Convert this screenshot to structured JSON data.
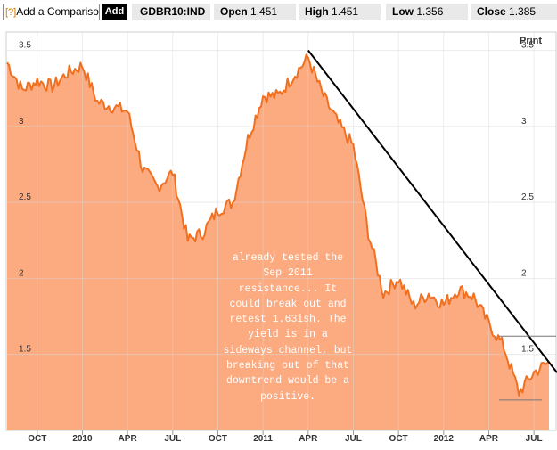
{
  "toolbar": {
    "help_mark": "[?]",
    "comparison_label": "Add a Comparison",
    "add_label": "Add",
    "ticker": "GDBR10:IND",
    "open_label": "Open",
    "open_value": "1.451",
    "high_label": "High",
    "high_value": "1.451",
    "low_label": "Low",
    "low_value": "1.356",
    "close_label": "Close",
    "close_value": "1.385",
    "print_label": "Print"
  },
  "colors": {
    "line": "#f07020",
    "fill": "#fcaa80",
    "trend": "#000000"
  },
  "chart_data": {
    "type": "area",
    "x_ticks": [
      "OCT",
      "2010",
      "APR",
      "JUL",
      "OCT",
      "2011",
      "APR",
      "JUL",
      "OCT",
      "2012",
      "APR",
      "JUL"
    ],
    "y_ticks": [
      "3.5",
      "3",
      "2.5",
      "2",
      "1.5"
    ],
    "ylim": [
      1.0,
      3.62
    ],
    "grid": true,
    "x": [
      "2009-08",
      "2009-09",
      "2009-10",
      "2009-11",
      "2009-12",
      "2010-01",
      "2010-02",
      "2010-03",
      "2010-04",
      "2010-05",
      "2010-06",
      "2010-07",
      "2010-08",
      "2010-09",
      "2010-10",
      "2010-11",
      "2010-12",
      "2011-01",
      "2011-02",
      "2011-03",
      "2011-04",
      "2011-05",
      "2011-06",
      "2011-07",
      "2011-08",
      "2011-09",
      "2011-10",
      "2011-11",
      "2011-12",
      "2012-01",
      "2012-02",
      "2012-03",
      "2012-04",
      "2012-05",
      "2012-06",
      "2012-07",
      "2012-08"
    ],
    "values": [
      3.42,
      3.24,
      3.3,
      3.26,
      3.35,
      3.4,
      3.16,
      3.13,
      3.1,
      2.72,
      2.6,
      2.7,
      2.25,
      2.3,
      2.45,
      2.5,
      2.92,
      3.2,
      3.2,
      3.33,
      3.45,
      3.2,
      3.02,
      2.87,
      2.3,
      1.9,
      2.0,
      1.82,
      1.9,
      1.83,
      1.93,
      1.88,
      1.7,
      1.55,
      1.25,
      1.38,
      1.45
    ],
    "annotations": [
      {
        "type": "trendline",
        "from": [
          "2011-04",
          3.5
        ],
        "to": [
          "2012-08",
          1.38
        ]
      },
      {
        "type": "hline",
        "y": 1.62
      },
      {
        "type": "hline",
        "y": 1.2
      },
      {
        "type": "text",
        "text": "already tested the Sep 2011 resistance... It could break out and retest 1.63ish. The yield is in a sideways channel, but breaking out of that downtrend would be a positive."
      }
    ]
  }
}
